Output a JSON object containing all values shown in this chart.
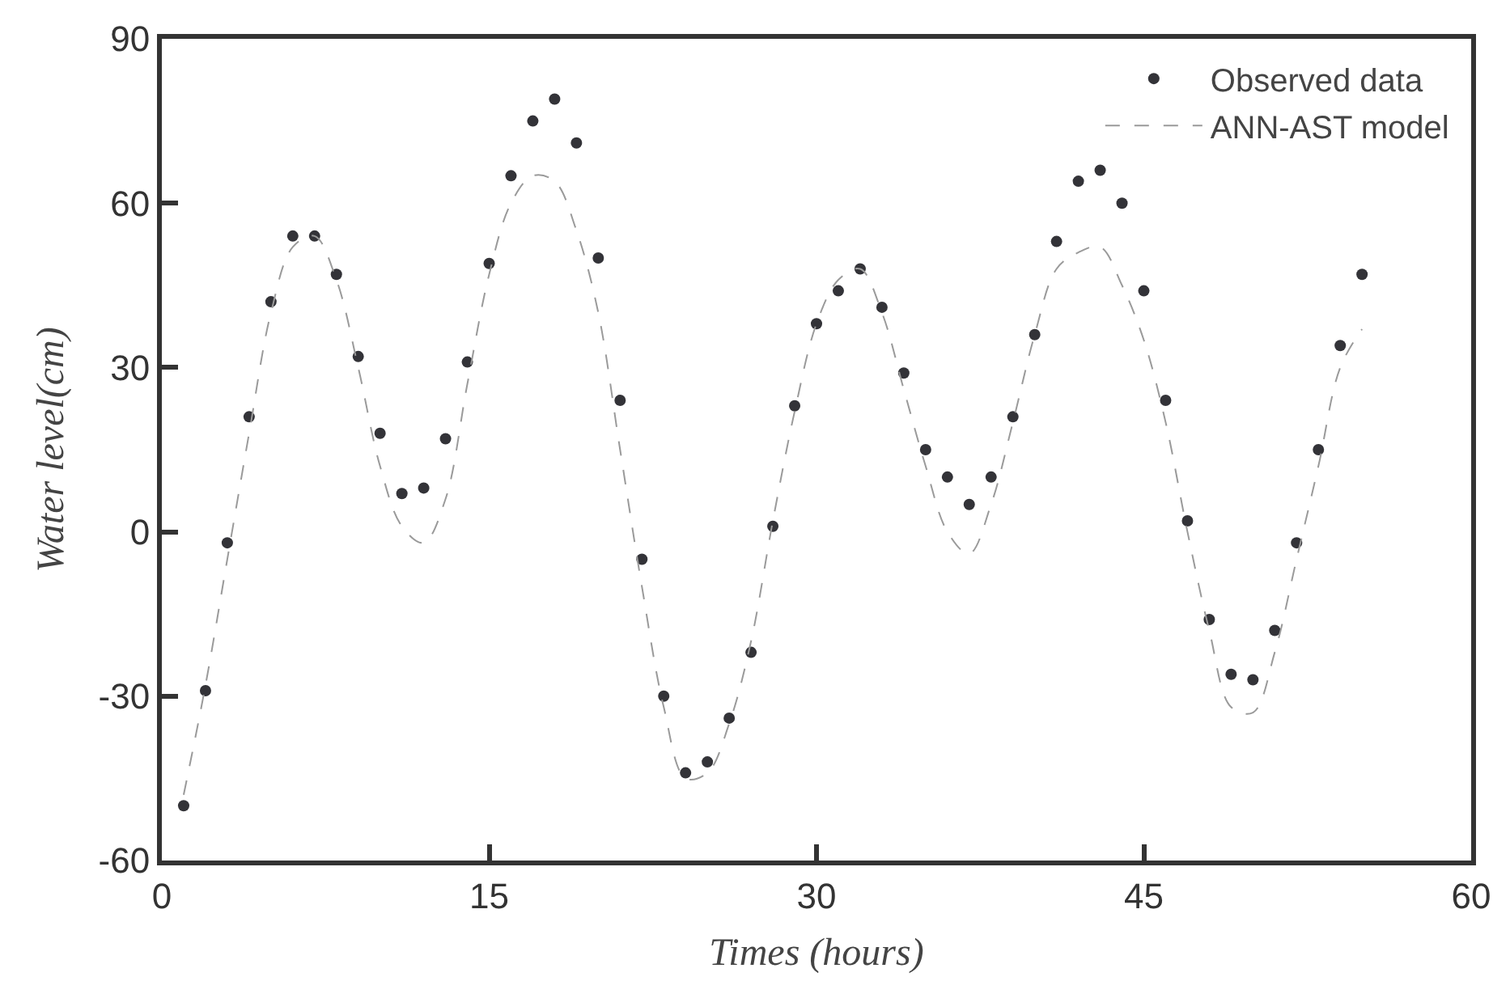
{
  "chart_data": {
    "type": "scatter",
    "xlabel": "Times (hours)",
    "ylabel": "Water level(cm)",
    "xlim": [
      0,
      60
    ],
    "xticks": [
      0,
      15,
      30,
      45,
      60
    ],
    "ylim": [
      -60,
      90
    ],
    "yticks": [
      -60,
      -30,
      0,
      30,
      60,
      90
    ],
    "legend": "top right",
    "x": [
      1,
      2,
      3,
      4,
      5,
      6,
      7,
      8,
      9,
      10,
      11,
      12,
      13,
      14,
      15,
      16,
      17,
      18,
      19,
      20,
      21,
      22,
      23,
      24,
      25,
      26,
      27,
      28,
      29,
      30,
      31,
      32,
      33,
      34,
      35,
      36,
      37,
      38,
      39,
      40,
      41,
      42,
      43,
      44,
      45,
      46,
      47,
      48,
      49,
      50,
      51,
      52,
      53,
      54,
      55
    ],
    "series": [
      {
        "name": "Observed data",
        "marker": "circle",
        "color": "#333338",
        "values": [
          -50,
          -29,
          -2,
          21,
          42,
          54,
          54,
          47,
          32,
          18,
          7,
          8,
          17,
          31,
          49,
          65,
          75,
          79,
          71,
          50,
          24,
          -5,
          -30,
          -44,
          -42,
          -34,
          -22,
          1,
          23,
          38,
          44,
          48,
          41,
          29,
          15,
          10,
          5,
          10,
          21,
          36,
          53,
          64,
          66,
          60,
          44,
          24,
          2,
          -16,
          -26,
          -27,
          -18,
          -2,
          15,
          34,
          47
        ]
      },
      {
        "name": "ANN-AST model",
        "type": "line",
        "marker": "none",
        "line_style": "dashed",
        "color": "#9a9a9a",
        "values": [
          -48,
          -28,
          -5,
          18,
          40,
          52,
          54,
          46,
          30,
          12,
          1,
          -2,
          6,
          27,
          47,
          60,
          65,
          64,
          55,
          40,
          15,
          -10,
          -32,
          -45,
          -44,
          -35,
          -20,
          2,
          22,
          38,
          46,
          48,
          40,
          26,
          12,
          0,
          -4,
          5,
          20,
          36,
          48,
          51,
          52,
          45,
          35,
          20,
          0,
          -18,
          -32,
          -33,
          -22,
          -5,
          12,
          30,
          37
        ]
      }
    ]
  }
}
